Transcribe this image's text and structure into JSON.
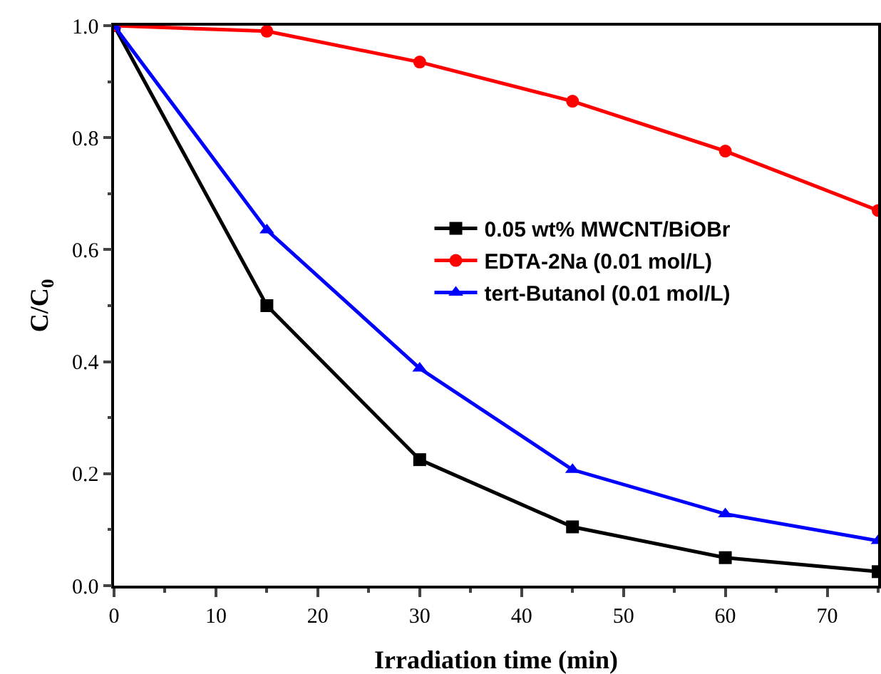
{
  "chart_data": {
    "type": "line",
    "xlabel": "Irradiation time (min)",
    "ylabel": "C/C$_{0}$",
    "x": [
      0,
      15,
      30,
      45,
      60,
      75
    ],
    "series": [
      {
        "name": "0.05 wt% MWCNT/BiOBr",
        "color": "#000000",
        "marker": "square",
        "values": [
          1.0,
          0.5,
          0.225,
          0.105,
          0.05,
          0.025
        ]
      },
      {
        "name": "EDTA-2Na (0.01 mol/L)",
        "color": "#ff0000",
        "marker": "circle",
        "values": [
          1.0,
          0.99,
          0.935,
          0.865,
          0.776,
          0.67
        ]
      },
      {
        "name": "tert-Butanol (0.01 mol/L)",
        "color": "#0000ff",
        "marker": "triangle",
        "values": [
          1.0,
          0.635,
          0.388,
          0.207,
          0.128,
          0.08
        ]
      }
    ],
    "xlim": [
      0,
      75
    ],
    "xticks": [
      0,
      10,
      20,
      30,
      40,
      50,
      60,
      70
    ],
    "ylim": [
      0,
      1.0
    ],
    "yticks": [
      {
        "value": 0,
        "label": "0.0"
      },
      0.2,
      0.4,
      0.6,
      0.8,
      {
        "value": 1,
        "label": "1.0"
      }
    ],
    "legend": "right",
    "grid": false
  }
}
